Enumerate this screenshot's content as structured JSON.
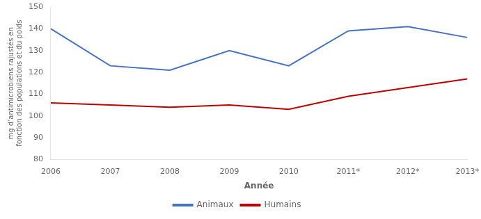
{
  "chart_data": {
    "type": "line",
    "categories": [
      "2006",
      "2007",
      "2008",
      "2009",
      "2010",
      "2011*",
      "2012*",
      "2013*"
    ],
    "series": [
      {
        "name": "Animaux",
        "color": "#4472C4",
        "values": [
          140,
          123,
          121,
          130,
          123,
          139,
          141,
          136
        ]
      },
      {
        "name": "Humains",
        "color": "#C00000",
        "values": [
          106,
          105,
          104,
          105,
          103,
          109,
          113,
          117
        ]
      }
    ],
    "xlabel": "Année",
    "ylabel": "mg d’antimicrobiens rajustés en\nfonction des populations et du poids",
    "ylim": [
      80,
      150
    ],
    "yticks": [
      80,
      90,
      100,
      110,
      120,
      130,
      140,
      150
    ],
    "grid": false,
    "legend": "bottom"
  }
}
